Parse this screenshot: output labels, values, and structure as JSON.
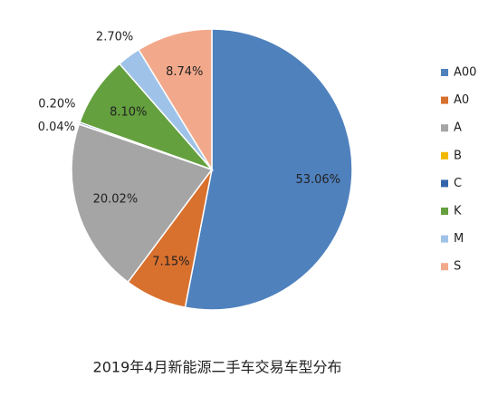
{
  "chart_data": {
    "type": "pie",
    "title": "2019年4月新能源二手车交易车型分布",
    "categories": [
      "A00",
      "A0",
      "A",
      "B",
      "C",
      "K",
      "M",
      "S"
    ],
    "values": [
      53.06,
      7.15,
      20.02,
      0.04,
      0.2,
      8.1,
      2.7,
      8.74
    ],
    "value_labels": [
      "53.06%",
      "7.15%",
      "20.02%",
      "0.04%",
      "0.20%",
      "8.10%",
      "2.70%",
      "8.74%"
    ],
    "colors": [
      "#4f81bd",
      "#d8702e",
      "#a5a5a5",
      "#f2b800",
      "#3464ab",
      "#64a03e",
      "#9fc3e8",
      "#f2a98b"
    ],
    "legend": "right"
  }
}
